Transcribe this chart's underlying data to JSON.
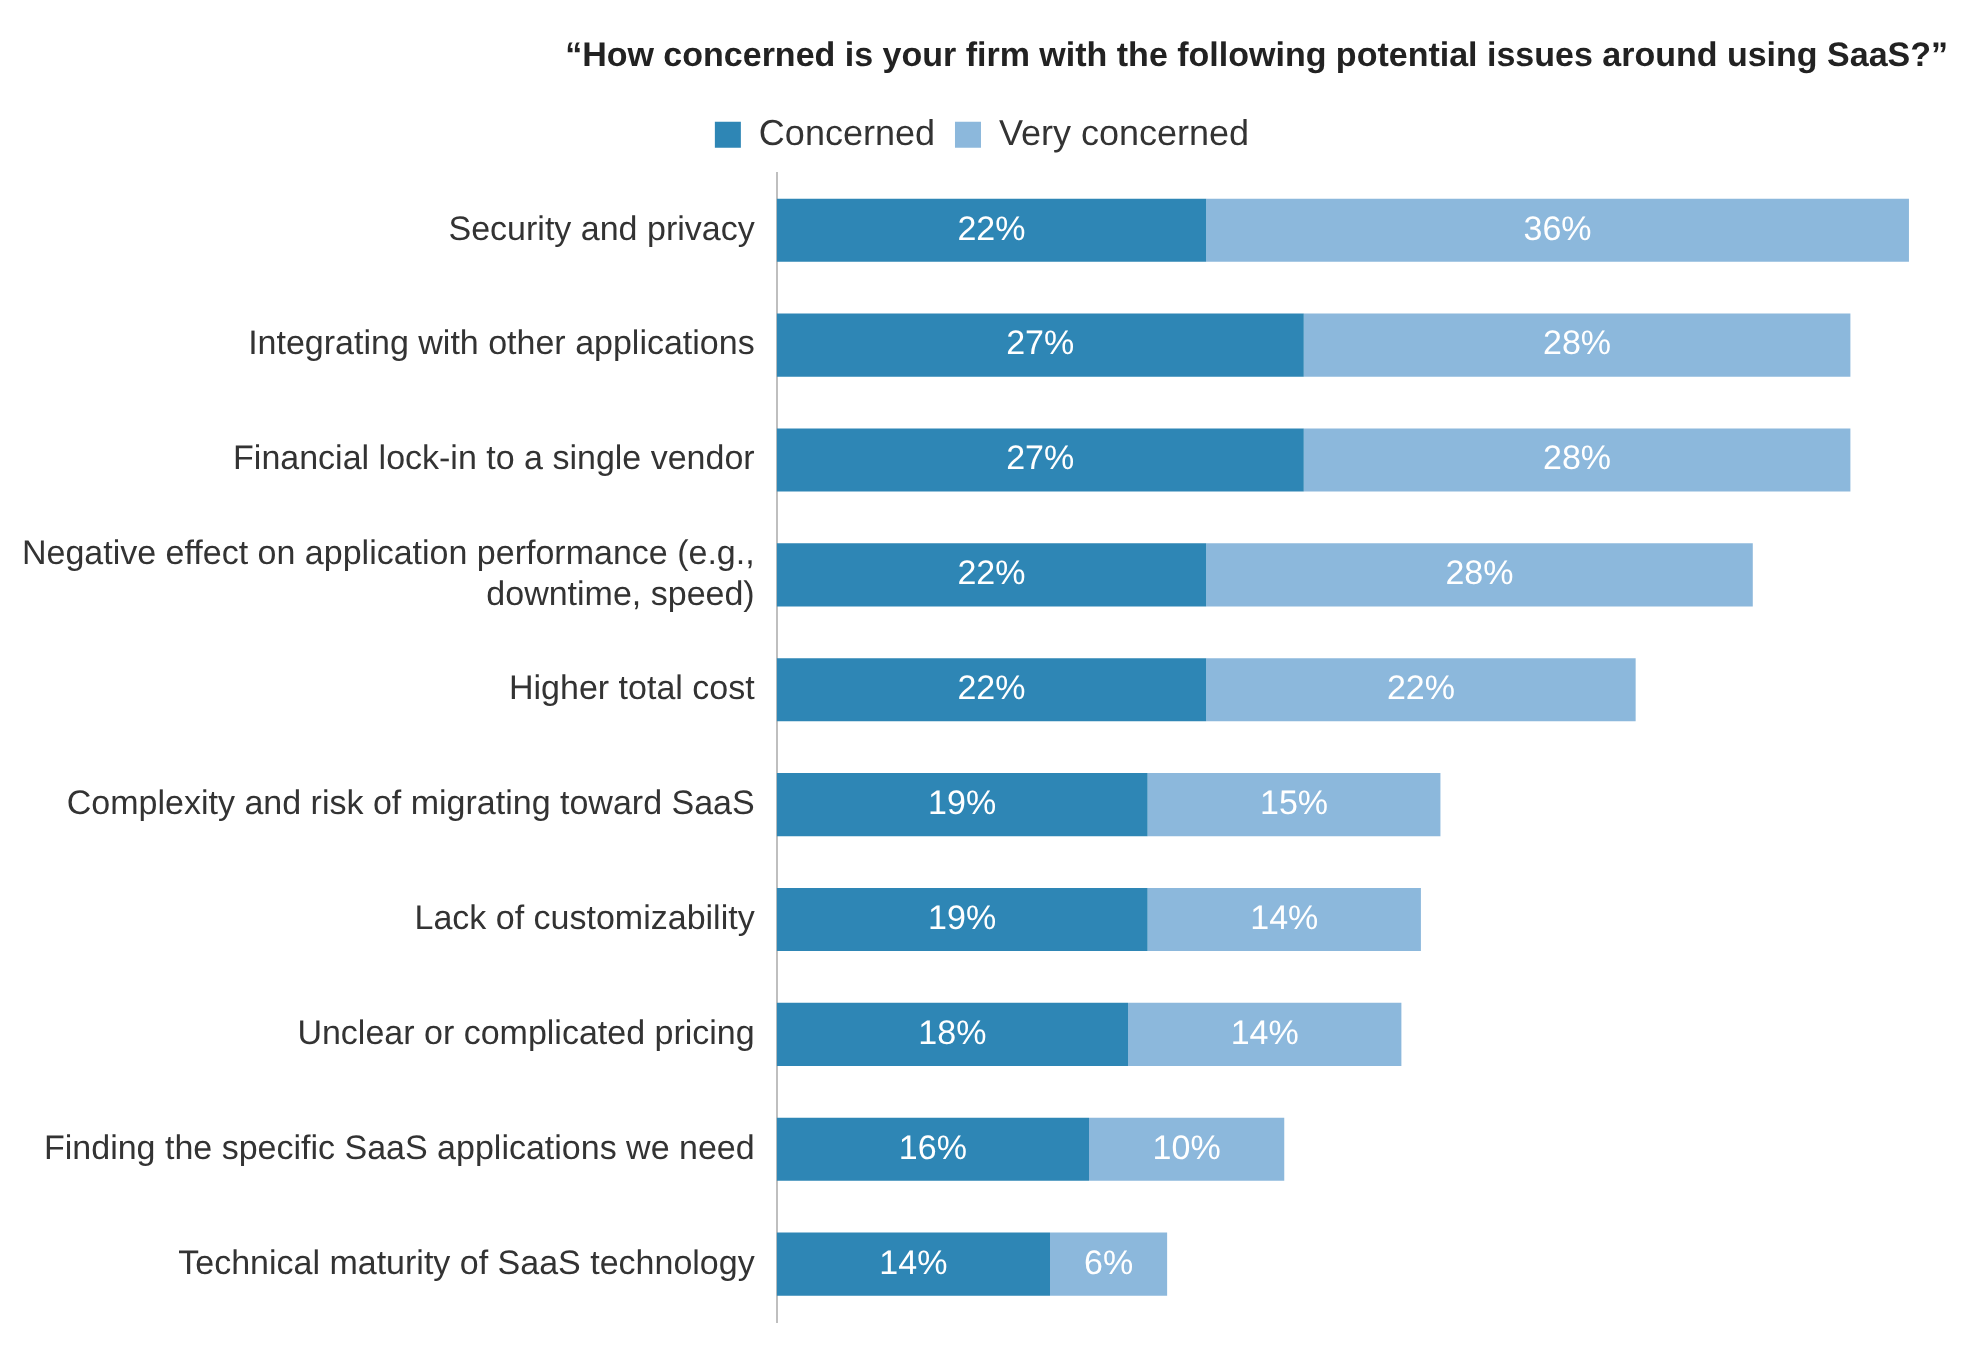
{
  "chart_data": {
    "type": "bar",
    "orientation": "horizontal",
    "stacked": true,
    "title": "“How concerned is your firm with the following potential issues around using SaaS?”",
    "categories": [
      "Security and privacy",
      "Integrating with other applications",
      "Financial lock-in to a single vendor",
      "Negative effect on application performance (e.g., downtime, speed)",
      "Higher total cost",
      "Complexity and risk of migrating toward SaaS",
      "Lack of customizability",
      "Unclear or complicated pricing",
      "Finding the specific SaaS applications we need",
      "Technical maturity of SaaS technology"
    ],
    "series": [
      {
        "name": "Concerned",
        "color": "#2e86b5",
        "values": [
          22,
          27,
          27,
          22,
          22,
          19,
          19,
          18,
          16,
          14
        ],
        "value_labels": [
          "22%",
          "27%",
          "27%",
          "22%",
          "22%",
          "19%",
          "19%",
          "18%",
          "16%",
          "14%"
        ]
      },
      {
        "name": "Very concerned",
        "color": "#8cb8dc",
        "values": [
          36,
          28,
          28,
          28,
          22,
          15,
          14,
          14,
          10,
          6
        ],
        "value_labels": [
          "36%",
          "28%",
          "28%",
          "28%",
          "22%",
          "15%",
          "14%",
          "14%",
          "10%",
          "6%"
        ]
      }
    ],
    "legend": "top"
  }
}
